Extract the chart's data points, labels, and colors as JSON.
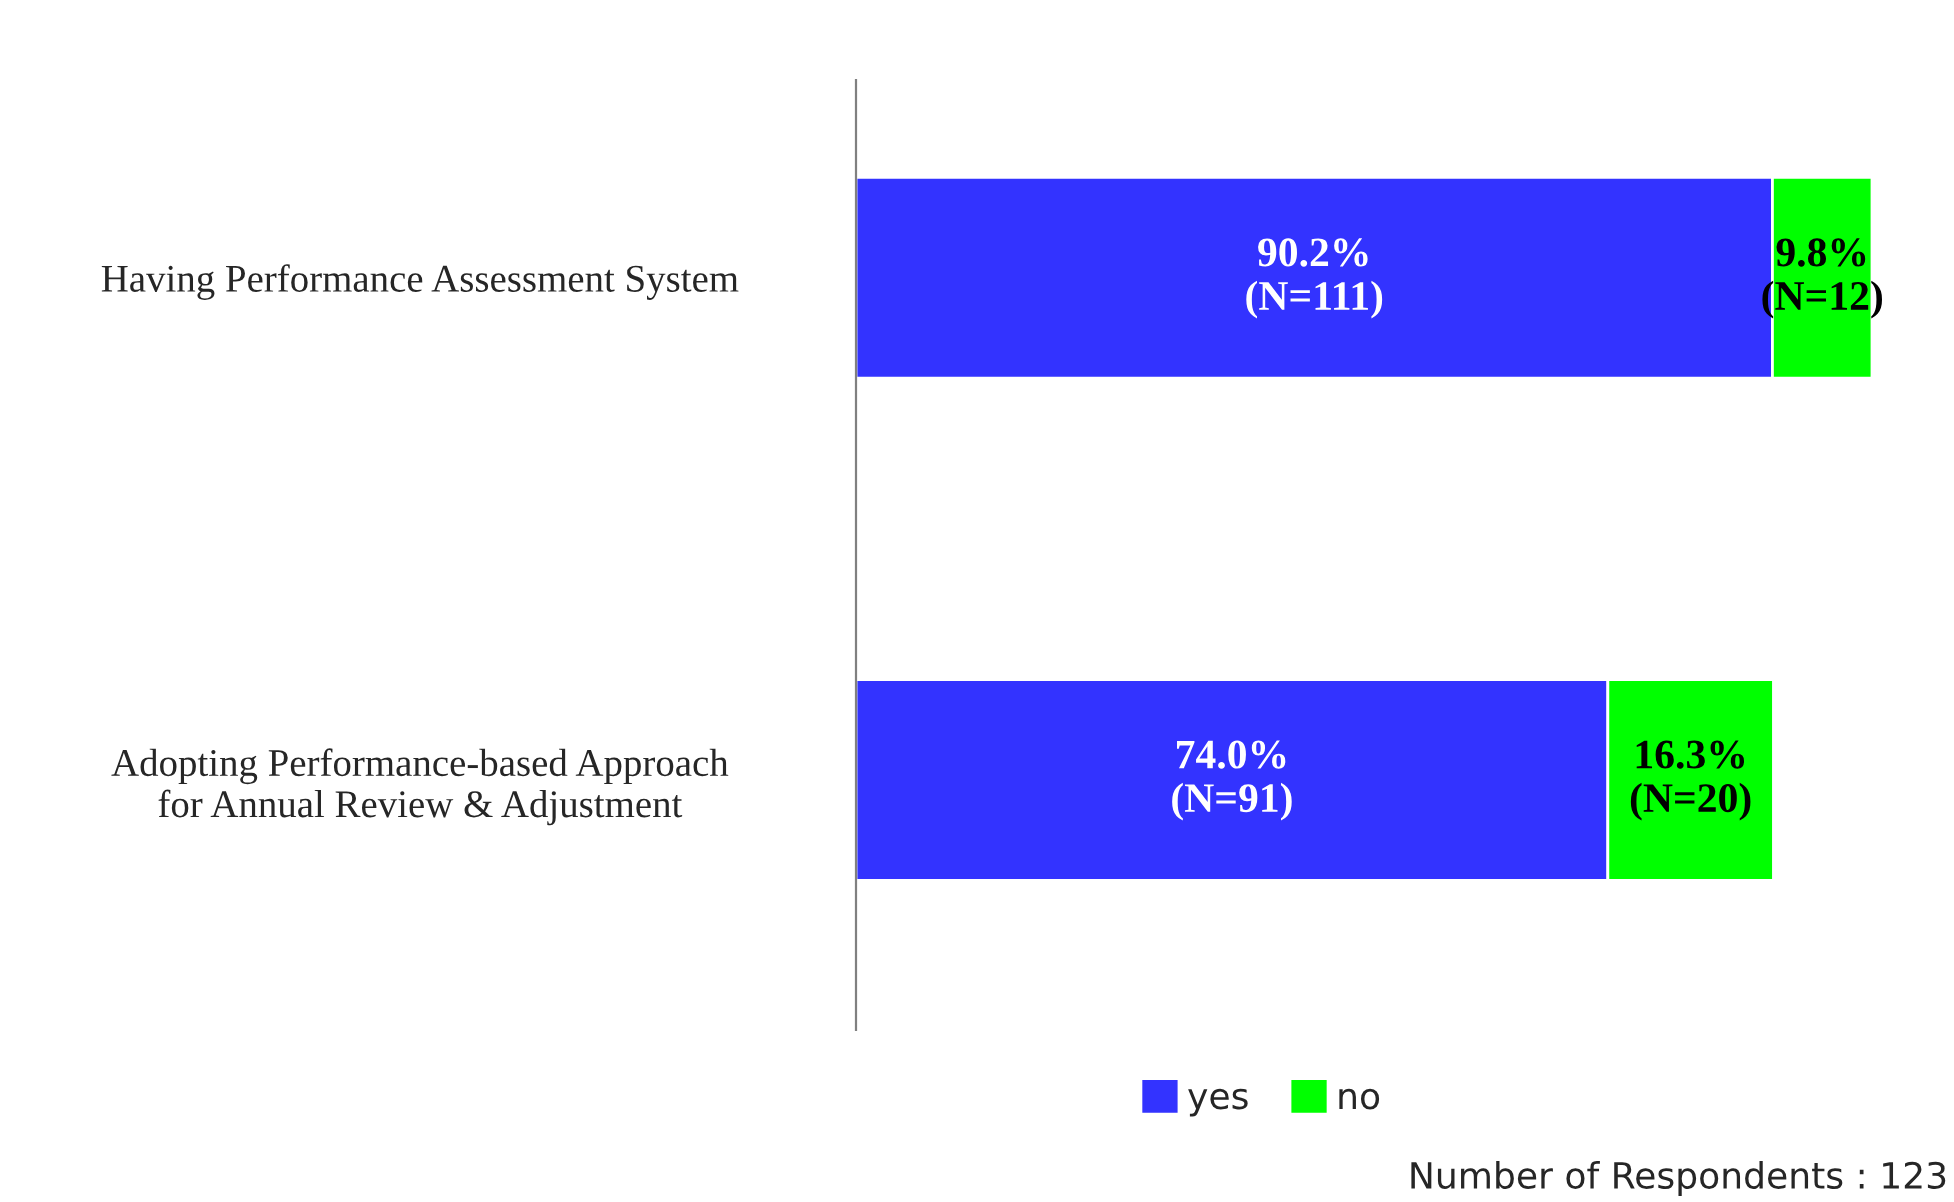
{
  "chart_data": {
    "type": "bar",
    "orientation": "horizontal",
    "stacked": true,
    "categories": [
      "Having Performance Assessment System",
      "Adopting Performance-based Approach\nfor Annual Review & Adjustment"
    ],
    "series": [
      {
        "name": "yes",
        "color": "#3333ff",
        "values": [
          90.2,
          74.0
        ],
        "value_labels": [
          "90.2%\n(N=111)",
          "74.0%\n(N=91)"
        ]
      },
      {
        "name": "no",
        "color": "#00ff00",
        "values": [
          9.8,
          16.3
        ],
        "value_labels": [
          "9.8%\n(N=12)",
          "16.3%\n(N=20)"
        ]
      }
    ],
    "tick_labels": "y",
    "grid": false,
    "legend": "bottom",
    "annotations": [
      "Number of Respondents : 123"
    ]
  }
}
